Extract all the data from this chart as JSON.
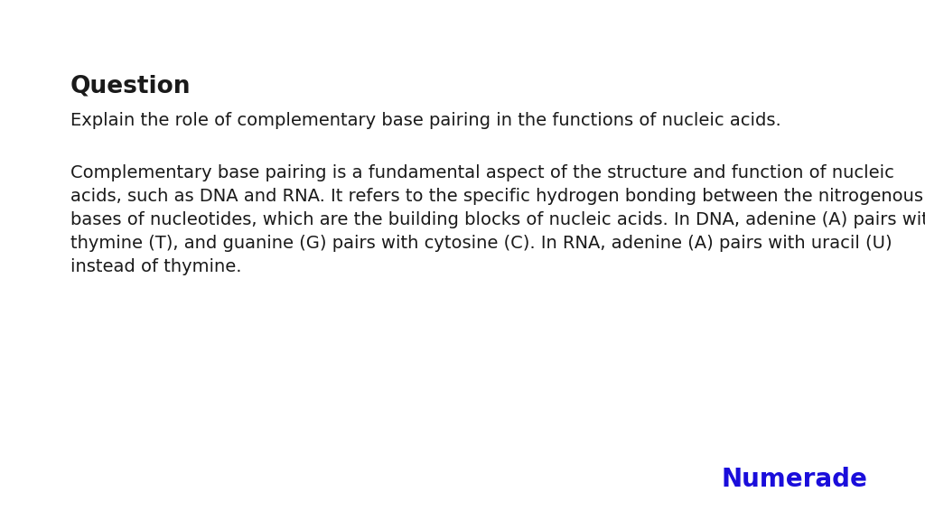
{
  "background_color": "#ffffff",
  "question_label": "Question",
  "question_text": "Explain the role of complementary base pairing in the functions of nucleic acids.",
  "answer_lines": [
    "Complementary base pairing is a fundamental aspect of the structure and function of nucleic",
    "acids, such as DNA and RNA. It refers to the specific hydrogen bonding between the nitrogenous",
    "bases of nucleotides, which are the building blocks of nucleic acids. In DNA, adenine (A) pairs with",
    "thymine (T), and guanine (G) pairs with cytosine (C). In RNA, adenine (A) pairs with uracil (U)",
    "instead of thymine."
  ],
  "numerade_text": "Numerade",
  "numerade_color": "#1a0ddb",
  "text_color": "#1a1a1a",
  "question_label_fontsize": 19,
  "question_text_fontsize": 14,
  "answer_fontsize": 14,
  "numerade_fontsize": 20
}
